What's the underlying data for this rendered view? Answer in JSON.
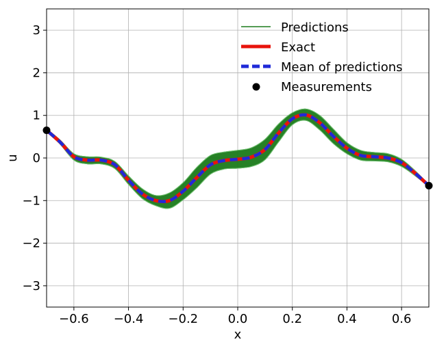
{
  "chart_data": {
    "type": "line",
    "title": "",
    "xlabel": "x",
    "ylabel": "u",
    "xlim": [
      -0.7,
      0.7
    ],
    "ylim": [
      -3.5,
      3.5
    ],
    "grid": true,
    "legend_position": "top-right",
    "x_ticks": [
      -0.6,
      -0.4,
      -0.2,
      0.0,
      0.2,
      0.4,
      0.6
    ],
    "x_tick_labels": [
      "−0.6",
      "−0.4",
      "−0.2",
      "0.0",
      "0.2",
      "0.4",
      "0.6"
    ],
    "y_ticks": [
      -3,
      -2,
      -1,
      0,
      1,
      2,
      3
    ],
    "y_tick_labels": [
      "−3",
      "−2",
      "−1",
      "0",
      "1",
      "2",
      "3"
    ],
    "x": [
      -0.7,
      -0.65,
      -0.6,
      -0.55,
      -0.5,
      -0.45,
      -0.4,
      -0.35,
      -0.3,
      -0.25,
      -0.2,
      -0.15,
      -0.1,
      -0.05,
      0.0,
      0.05,
      0.1,
      0.15,
      0.2,
      0.25,
      0.3,
      0.35,
      0.4,
      0.45,
      0.5,
      0.55,
      0.6,
      0.65,
      0.7
    ],
    "series": [
      {
        "name": "Predictions",
        "style": "band",
        "color": "#1a7a1a",
        "lower": [
          0.62,
          0.32,
          -0.05,
          -0.14,
          -0.14,
          -0.25,
          -0.62,
          -0.95,
          -1.12,
          -1.18,
          -0.98,
          -0.7,
          -0.38,
          -0.26,
          -0.24,
          -0.2,
          -0.04,
          0.38,
          0.78,
          0.88,
          0.66,
          0.34,
          0.1,
          -0.05,
          -0.07,
          -0.09,
          -0.2,
          -0.42,
          -0.67
        ],
        "upper": [
          0.68,
          0.42,
          0.1,
          0.03,
          0.02,
          -0.08,
          -0.42,
          -0.72,
          -0.88,
          -0.82,
          -0.58,
          -0.22,
          0.06,
          0.14,
          0.18,
          0.24,
          0.44,
          0.8,
          1.06,
          1.15,
          1.0,
          0.68,
          0.36,
          0.18,
          0.13,
          0.1,
          -0.03,
          -0.3,
          -0.63
        ]
      },
      {
        "name": "Exact",
        "style": "line",
        "color": "#e8140c",
        "values": [
          0.65,
          0.37,
          0.03,
          -0.05,
          -0.05,
          -0.16,
          -0.52,
          -0.84,
          -1.0,
          -1.0,
          -0.78,
          -0.46,
          -0.16,
          -0.06,
          -0.03,
          0.02,
          0.2,
          0.59,
          0.92,
          1.01,
          0.83,
          0.51,
          0.23,
          0.06,
          0.03,
          0.0,
          -0.11,
          -0.36,
          -0.65
        ]
      },
      {
        "name": "Mean of predictions",
        "style": "dashed",
        "color": "#1f2ad8",
        "values": [
          0.65,
          0.37,
          0.03,
          -0.05,
          -0.05,
          -0.16,
          -0.52,
          -0.84,
          -1.0,
          -1.0,
          -0.78,
          -0.46,
          -0.16,
          -0.06,
          -0.03,
          0.02,
          0.2,
          0.59,
          0.92,
          1.01,
          0.83,
          0.51,
          0.23,
          0.06,
          0.03,
          0.0,
          -0.11,
          -0.36,
          -0.65
        ]
      },
      {
        "name": "Measurements",
        "style": "scatter",
        "color": "#000000",
        "points": [
          [
            -0.7,
            0.65
          ],
          [
            0.7,
            -0.65
          ]
        ]
      }
    ],
    "legend": [
      "Predictions",
      "Exact",
      "Mean of predictions",
      "Measurements"
    ]
  }
}
